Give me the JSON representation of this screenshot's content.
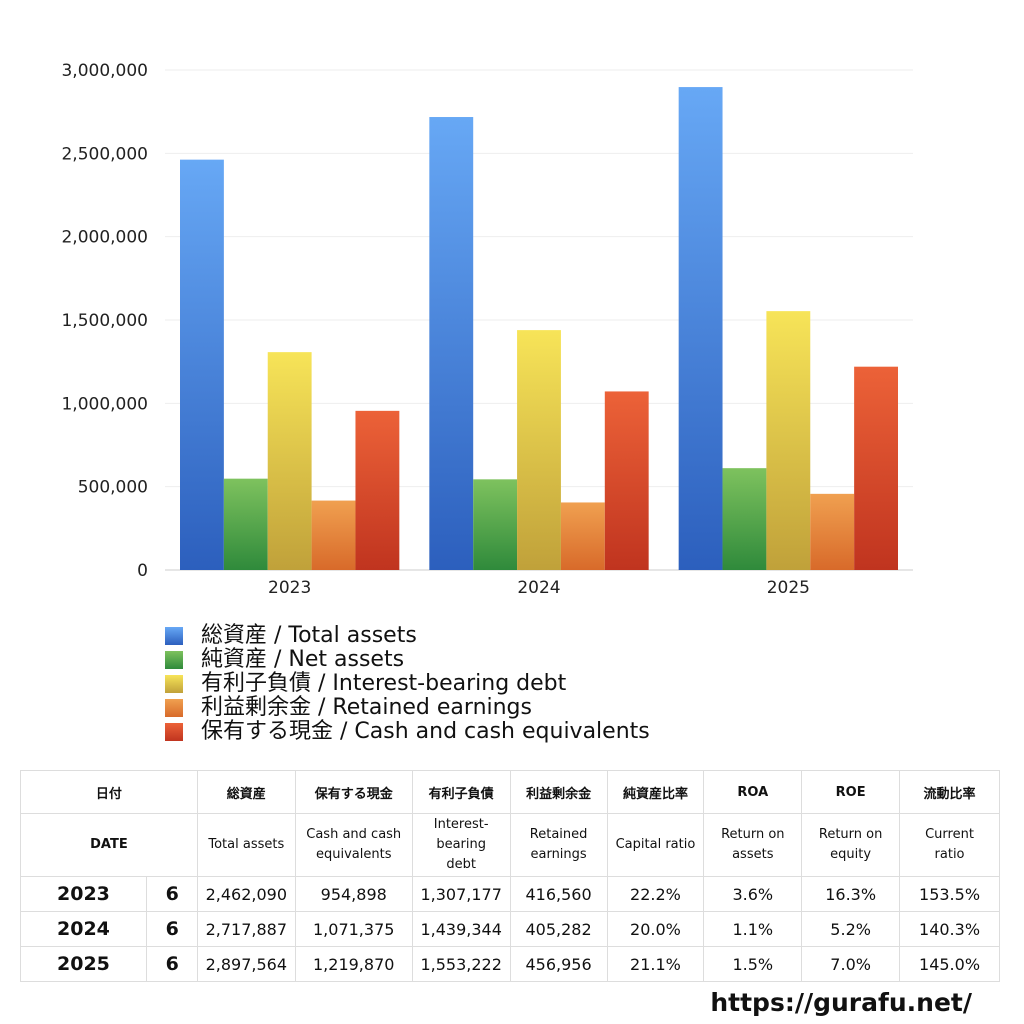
{
  "chart_data": {
    "type": "bar",
    "categories": [
      "2023",
      "2024",
      "2025"
    ],
    "series": [
      {
        "name": "総資産 / Total assets",
        "values": [
          2462090,
          2717887,
          2897564
        ],
        "color_top": "#67a8f5",
        "color_bottom": "#2c5fbd"
      },
      {
        "name": "純資産 / Net assets",
        "values": [
          548000,
          544000,
          611000
        ],
        "color_top": "#7ec25e",
        "color_bottom": "#2f8a3b"
      },
      {
        "name": "有利子負債 / Interest-bearing debt",
        "values": [
          1307177,
          1439344,
          1553222
        ],
        "color_top": "#f7e458",
        "color_bottom": "#c0a13a"
      },
      {
        "name": "利益剰余金 / Retained earnings",
        "values": [
          416560,
          405282,
          456956
        ],
        "color_top": "#f0a050",
        "color_bottom": "#d86a2a"
      },
      {
        "name": "保有する現金 /  Cash and cash equivalents",
        "values": [
          954898,
          1071375,
          1219870
        ],
        "color_top": "#ec6238",
        "color_bottom": "#c0341f"
      }
    ],
    "yticks": [
      "0",
      "500,000",
      "1,000,000",
      "1,500,000",
      "2,000,000",
      "2,500,000",
      "3,000,000"
    ],
    "ylim": [
      0,
      3000000
    ],
    "grid": true,
    "legend_position": "bottom-left"
  },
  "table": {
    "header_jp": {
      "date": "日付",
      "total_assets": "総資産",
      "cash": "保有する現金",
      "debt": "有利子負債",
      "retained": "利益剰余金",
      "capital_ratio": "純資産比率",
      "roa": "ROA",
      "roe": "ROE",
      "current_ratio": "流動比率"
    },
    "header_en": {
      "date": "DATE",
      "total_assets": "Total assets",
      "cash_1": "Cash and cash",
      "cash_2": "equivalents",
      "debt_1": "Interest-",
      "debt_2": "bearing",
      "debt_3": "debt",
      "retained_1": "Retained",
      "retained_2": "earnings",
      "capital_ratio": "Capital ratio",
      "roa_1": "Return on",
      "roa_2": "assets",
      "roe_1": "Return on",
      "roe_2": "equity",
      "current_1": "Current",
      "current_2": "ratio"
    },
    "rows": [
      {
        "year": "2023",
        "month": "6",
        "total_assets": "2,462,090",
        "cash": "954,898",
        "debt": "1,307,177",
        "retained": "416,560",
        "capital_ratio": "22.2%",
        "roa": "3.6%",
        "roe": "16.3%",
        "current_ratio": "153.5%"
      },
      {
        "year": "2024",
        "month": "6",
        "total_assets": "2,717,887",
        "cash": "1,071,375",
        "debt": "1,439,344",
        "retained": "405,282",
        "capital_ratio": "20.0%",
        "roa": "1.1%",
        "roe": "5.2%",
        "current_ratio": "140.3%"
      },
      {
        "year": "2025",
        "month": "6",
        "total_assets": "2,897,564",
        "cash": "1,219,870",
        "debt": "1,553,222",
        "retained": "456,956",
        "capital_ratio": "21.1%",
        "roa": "1.5%",
        "roe": "7.0%",
        "current_ratio": "145.0%"
      }
    ]
  },
  "footer": {
    "url": "https://gurafu.net/"
  }
}
